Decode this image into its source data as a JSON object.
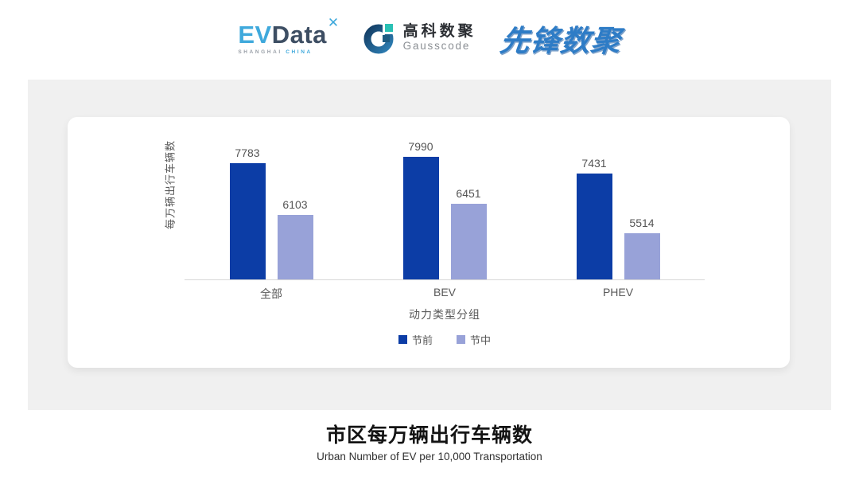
{
  "header": {
    "evdata": {
      "ev": "EV",
      "data": "Data",
      "mark": "✕",
      "shanghai": "SHANGHAI",
      "china": "CHINA"
    },
    "gausscode": {
      "cn": "高科数聚",
      "en": "Gausscode"
    },
    "pioneer": {
      "text": "先锋数聚"
    }
  },
  "chart_data": {
    "type": "bar",
    "categories": [
      "全部",
      "BEV",
      "PHEV"
    ],
    "series": [
      {
        "name": "节前",
        "color": "#0c3da6",
        "values": [
          7783,
          7990,
          7431
        ]
      },
      {
        "name": "节中",
        "color": "#98a2d8",
        "values": [
          6103,
          6451,
          5514
        ]
      }
    ],
    "ylabel": "每万辆出行车辆数",
    "xlabel": "动力类型分组",
    "ylim": [
      4000,
      8500
    ],
    "grid": false,
    "legend_position": "bottom",
    "value_labels": true,
    "axis_line_color": "#d8d8d8"
  },
  "footer": {
    "title": "市区每万辆出行车辆数",
    "subtitle": "Urban Number of EV per 10,000 Transportation"
  }
}
